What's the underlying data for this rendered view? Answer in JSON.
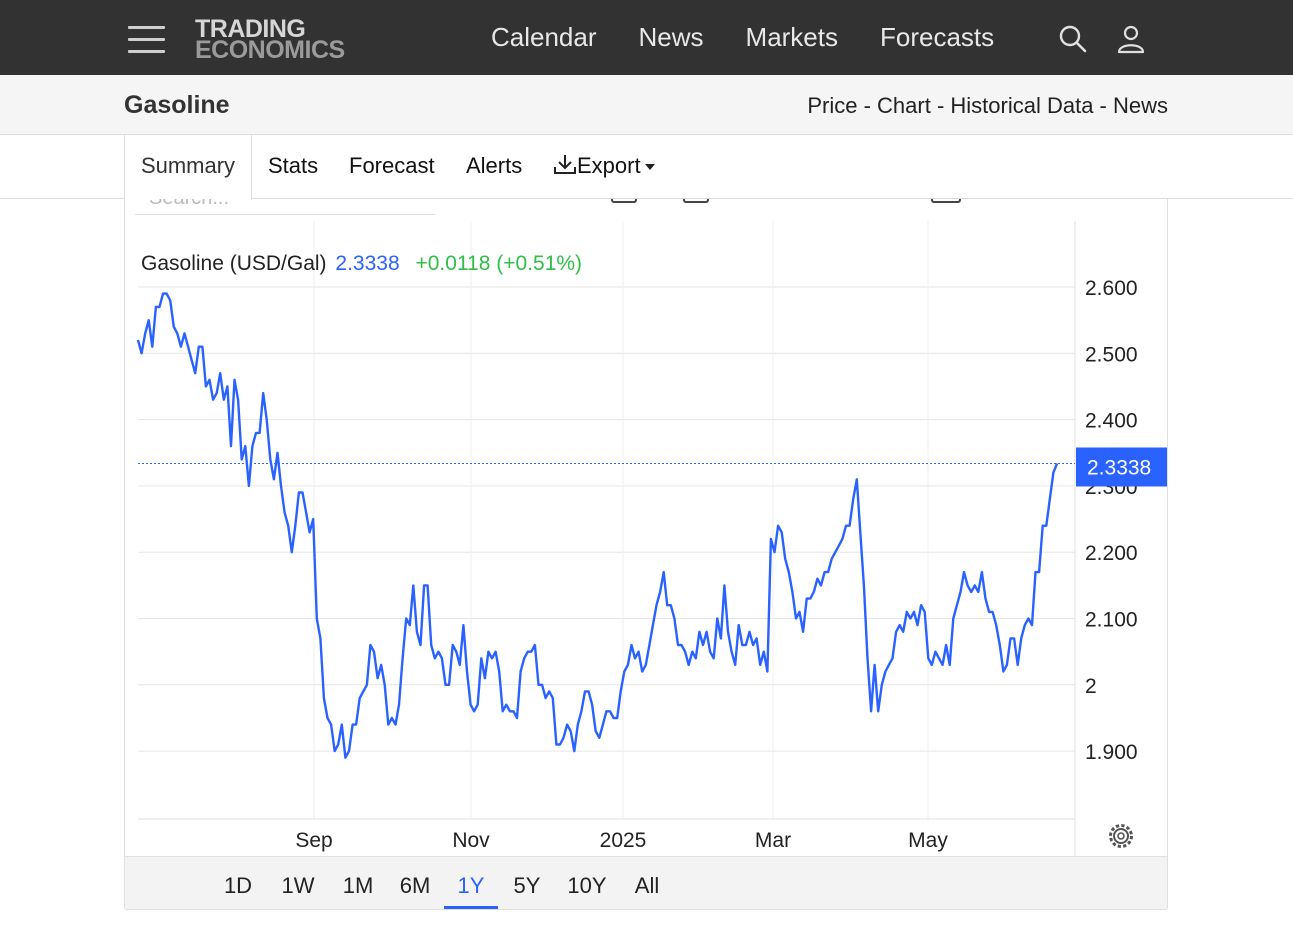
{
  "header": {
    "logo_line1": "TRADING",
    "logo_line2": "ECONOMICS",
    "nav": [
      "Calendar",
      "News",
      "Markets",
      "Forecasts"
    ]
  },
  "subheader": {
    "title": "Gasoline",
    "description": "Price - Chart - Historical Data - News"
  },
  "tabs": {
    "summary": "Summary",
    "stats": "Stats",
    "forecast": "Forecast",
    "alerts": "Alerts",
    "export": "Export"
  },
  "toolbar": {
    "search_placeholder": "Search..."
  },
  "legend": {
    "name": "Gasoline (USD/Gal)",
    "price": "2.3338",
    "change": "+0.0118 (+0.51%)"
  },
  "ranges": [
    "1D",
    "1W",
    "1M",
    "6M",
    "1Y",
    "5Y",
    "10Y",
    "All"
  ],
  "active_range": "1Y",
  "colors": {
    "line": "#2962ff",
    "up": "#2fbf47",
    "grid": "#ececec"
  },
  "chart_data": {
    "type": "line",
    "title": "",
    "xlabel": "",
    "ylabel": "",
    "x_ticks": [
      "Sep",
      "Nov",
      "2025",
      "Mar",
      "May"
    ],
    "y_ticks": [
      "2.600",
      "2.500",
      "2.400",
      "2.300",
      "2.200",
      "2.100",
      "2",
      "1.900"
    ],
    "ylim": [
      1.8,
      2.7
    ],
    "last_value": 2.3338,
    "last_value_label": "2.3338",
    "grid": true,
    "series": [
      {
        "values": [
          2.52,
          2.5,
          2.53,
          2.55,
          2.51,
          2.57,
          2.57,
          2.59,
          2.59,
          2.58,
          2.54,
          2.53,
          2.51,
          2.53,
          2.51,
          2.49,
          2.47,
          2.51,
          2.51,
          2.45,
          2.46,
          2.43,
          2.44,
          2.47,
          2.43,
          2.45,
          2.36,
          2.46,
          2.43,
          2.34,
          2.36,
          2.3,
          2.36,
          2.38,
          2.38,
          2.44,
          2.4,
          2.34,
          2.31,
          2.35,
          2.3,
          2.26,
          2.24,
          2.2,
          2.24,
          2.29,
          2.29,
          2.26,
          2.23,
          2.25,
          2.1,
          2.07,
          1.98,
          1.95,
          1.94,
          1.9,
          1.91,
          1.94,
          1.89,
          1.9,
          1.94,
          1.94,
          1.98,
          1.99,
          2.0,
          2.06,
          2.05,
          2.01,
          2.03,
          2.0,
          1.94,
          1.95,
          1.94,
          1.97,
          2.04,
          2.1,
          2.09,
          2.15,
          2.08,
          2.06,
          2.15,
          2.15,
          2.06,
          2.04,
          2.05,
          2.04,
          2.0,
          2.0,
          2.06,
          2.05,
          2.03,
          2.09,
          2.02,
          1.97,
          1.96,
          1.97,
          2.04,
          2.01,
          2.05,
          2.04,
          2.05,
          2.02,
          1.96,
          1.97,
          1.96,
          1.96,
          1.95,
          2.02,
          2.04,
          2.05,
          2.05,
          2.06,
          2.0,
          2.0,
          1.98,
          1.99,
          1.98,
          1.91,
          1.91,
          1.92,
          1.94,
          1.93,
          1.9,
          1.94,
          1.96,
          1.99,
          1.99,
          1.97,
          1.93,
          1.92,
          1.94,
          1.96,
          1.96,
          1.95,
          1.95,
          1.99,
          2.02,
          2.03,
          2.06,
          2.04,
          2.05,
          2.02,
          2.03,
          2.06,
          2.09,
          2.12,
          2.14,
          2.17,
          2.12,
          2.12,
          2.1,
          2.06,
          2.06,
          2.05,
          2.03,
          2.05,
          2.04,
          2.08,
          2.06,
          2.08,
          2.05,
          2.04,
          2.1,
          2.07,
          2.15,
          2.08,
          2.05,
          2.03,
          2.09,
          2.06,
          2.06,
          2.08,
          2.06,
          2.07,
          2.03,
          2.05,
          2.02,
          2.22,
          2.2,
          2.24,
          2.23,
          2.19,
          2.17,
          2.14,
          2.1,
          2.11,
          2.08,
          2.13,
          2.13,
          2.14,
          2.16,
          2.15,
          2.17,
          2.17,
          2.19,
          2.2,
          2.21,
          2.22,
          2.24,
          2.24,
          2.28,
          2.31,
          2.23,
          2.15,
          2.04,
          1.96,
          2.03,
          1.96,
          2.0,
          2.02,
          2.03,
          2.04,
          2.08,
          2.09,
          2.08,
          2.11,
          2.1,
          2.11,
          2.09,
          2.12,
          2.11,
          2.04,
          2.03,
          2.05,
          2.04,
          2.03,
          2.06,
          2.03,
          2.1,
          2.12,
          2.14,
          2.17,
          2.15,
          2.14,
          2.15,
          2.14,
          2.17,
          2.13,
          2.11,
          2.11,
          2.09,
          2.06,
          2.02,
          2.03,
          2.07,
          2.07,
          2.03,
          2.07,
          2.09,
          2.1,
          2.09,
          2.17,
          2.17,
          2.24,
          2.24,
          2.28,
          2.32,
          2.3338
        ]
      }
    ]
  }
}
